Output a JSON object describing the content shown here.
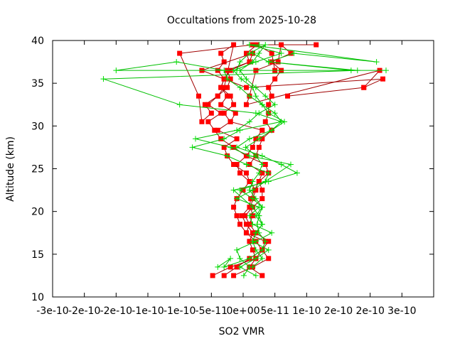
{
  "chart_data": {
    "type": "line",
    "title": "Occultations from 2025-10-28",
    "xlabel": "SO2 VMR",
    "ylabel": "Altitude (km)",
    "xlim": [
      -3e-10,
      3e-10
    ],
    "ylim": [
      10,
      40
    ],
    "grid": false,
    "legend": "none",
    "xticks": [
      {
        "value": -3e-10,
        "label": "-3e-10"
      },
      {
        "value": -2.5e-10,
        "label": "-2e-10"
      },
      {
        "value": -2e-10,
        "label": "-2e-10"
      },
      {
        "value": -1.5e-10,
        "label": "-1e-10"
      },
      {
        "value": -1e-10,
        "label": "-1e-10"
      },
      {
        "value": -5e-11,
        "label": "-5e-11"
      },
      {
        "value": 0,
        "label": "0e+00"
      },
      {
        "value": 5e-11,
        "label": "5e-11"
      },
      {
        "value": 1e-10,
        "label": "1e-10"
      },
      {
        "value": 1.5e-10,
        "label": "2e-10"
      },
      {
        "value": 2e-10,
        "label": "2e-10"
      },
      {
        "value": 2.5e-10,
        "label": "3e-10"
      }
    ],
    "yticks": [
      10,
      15,
      20,
      25,
      30,
      35,
      40
    ],
    "series": [
      {
        "name": "red-squares",
        "color": "#ff0000",
        "line_color": "#a00000",
        "marker": "square",
        "profiles": [
          {
            "x": [
              -4.8e-11,
              -2e-11,
              2e-11,
              3e-11,
              4e-11,
              2e-11,
              1e-11,
              1.5e-11,
              1.2e-11,
              1.5e-11,
              2e-11,
              1e-11,
              -5e-12,
              -1e-11,
              5e-12,
              1.5e-11,
              2e-11,
              3e-11,
              -2e-11,
              -1.2e-11,
              -3.5e-11,
              -2.5e-11,
              -3.5e-11,
              -3e-11,
              -4e-11,
              -3e-11,
              -3.5e-11,
              -1.5e-11,
              -3e-11,
              -4e-11,
              -6e-11,
              -5e-11,
              -6.5e-11,
              -7e-11,
              -1e-10,
              1.5e-11,
              1.15e-10
            ],
            "y": [
              12.5,
              13.5,
              14.5,
              15.5,
              16.5,
              17.5,
              18.5,
              19.5,
              20.5,
              21.5,
              22.5,
              23.5,
              24.5,
              25.5,
              26.5,
              27.5,
              28.5,
              29.5,
              30.5,
              31.5,
              32.5,
              33.5,
              34.5,
              35.5,
              36.5,
              37.5,
              38.5,
              39.5,
              34.5,
              33.5,
              32.5,
              31.5,
              30.5,
              33.5,
              38.5,
              39.5,
              39.5
            ]
          },
          {
            "x": [
              -3e-11,
              -1e-11,
              1e-11,
              3e-11,
              2e-11,
              5e-12,
              -5e-12,
              -1e-11,
              -1.5e-11,
              -1e-11,
              0,
              1e-11,
              5e-12,
              -1.5e-11,
              -2.5e-11,
              -3e-11,
              -1e-11,
              -4e-11,
              -2e-11,
              -3e-11,
              -1.5e-11,
              -2e-11,
              -3.5e-11,
              -3e-11,
              -2e-11,
              1e-11,
              1.5e-11,
              -6.5e-11,
              5e-12,
              2.2e-10,
              1.9e-10
            ],
            "y": [
              12.5,
              13.5,
              14.5,
              15.5,
              16.5,
              17.5,
              18.5,
              19.5,
              20.5,
              21.5,
              22.5,
              23.5,
              24.5,
              25.5,
              26.5,
              27.5,
              28.5,
              29.5,
              30.5,
              31.5,
              32.5,
              33.5,
              34.5,
              35.5,
              36.5,
              37.5,
              38.5,
              36.5,
              34.5,
              35.5,
              34.5
            ]
          },
          {
            "x": [
              -1.5e-11,
              1.5e-11,
              4e-11,
              3e-11,
              3.5e-11,
              5e-12,
              1e-11,
              3e-12,
              1.5e-11,
              3e-11,
              3e-11,
              2.5e-11,
              3e-11,
              1e-11,
              2e-11,
              2.5e-11,
              3e-11,
              4.5e-11,
              3.5e-11,
              4e-11,
              4e-11,
              4.5e-11,
              4e-11,
              5e-11,
              6e-11,
              4.5e-11,
              7.5e-11,
              6e-11,
              5.5e-11,
              2e-11,
              1e-11,
              5e-12,
              2.15e-10,
              1.9e-10,
              7e-11
            ],
            "y": [
              12.5,
              13.5,
              14.5,
              15.5,
              16.5,
              17.5,
              18.5,
              19.5,
              20.5,
              21.5,
              22.5,
              23.5,
              24.5,
              25.5,
              26.5,
              27.5,
              28.5,
              29.5,
              30.5,
              31.5,
              32.5,
              33.5,
              34.5,
              35.5,
              36.5,
              37.5,
              38.5,
              39.5,
              37.5,
              36.5,
              33.5,
              32.5,
              36.5,
              34.5,
              33.5
            ]
          },
          {
            "x": [
              3e-11,
              1e-11,
              2e-11,
              1.5e-11,
              1e-11,
              1.5e-11,
              5e-12,
              -2e-12,
              1e-11,
              1.2e-11,
              1.8e-11,
              2.5e-11,
              4e-11,
              3.5e-11,
              5e-12,
              -1.5e-11,
              -3.5e-11,
              -4.5e-11,
              -5.5e-11,
              -3.5e-11,
              -5.5e-11,
              -4e-11,
              -2.5e-11,
              -2e-11,
              -2.5e-11,
              1e-11,
              5e-12,
              2.2e-11,
              4.5e-11,
              5e-11
            ],
            "y": [
              12.5,
              13.5,
              14.5,
              15.5,
              16.5,
              17.5,
              18.5,
              19.5,
              20.5,
              21.5,
              22.5,
              23.5,
              24.5,
              25.5,
              26.5,
              27.5,
              28.5,
              29.5,
              30.5,
              31.5,
              32.5,
              33.5,
              34.5,
              35.5,
              36.5,
              37.5,
              38.5,
              39.5,
              38.5,
              36.5
            ]
          }
        ]
      },
      {
        "name": "green-plus",
        "color": "#00dd00",
        "line_color": "#00c000",
        "marker": "plus",
        "profiles": [
          {
            "x": [
              2e-11,
              -5e-12,
              2e-11,
              4e-11,
              1.5e-11,
              2e-11,
              3e-11,
              2e-11,
              3e-11,
              1.5e-11,
              -5e-12,
              3.5e-11,
              4e-11,
              5e-12,
              -2.5e-11,
              -8e-11,
              -3e-11,
              -5e-12,
              6e-11,
              2e-11,
              -1e-10,
              -2.2e-10,
              1.8e-10,
              4e-11,
              8e-11,
              2.1e-10,
              1e-11
            ],
            "y": [
              12.5,
              13.5,
              14.5,
              15.5,
              16.5,
              17.5,
              18.5,
              19.5,
              20.5,
              21.5,
              22.5,
              23.5,
              24.5,
              25.5,
              26.5,
              27.5,
              28.5,
              29.5,
              30.5,
              31.5,
              32.5,
              35.5,
              36.5,
              37.5,
              38.5,
              37.5,
              39.5
            ]
          },
          {
            "x": [
              -4e-11,
              -2e-11,
              -3e-11,
              1e-11,
              3e-11,
              3.5e-11,
              2.5e-11,
              2.2e-11,
              2.5e-11,
              1.5e-11,
              -1.5e-11,
              4e-11,
              8.5e-11,
              6e-11,
              3e-11,
              -1e-11,
              1e-11,
              4.5e-11,
              6.5e-11,
              4e-11,
              3e-11,
              1e-11,
              -5e-12,
              -2.5e-11,
              -3e-11,
              -1.05e-10,
              -2e-10,
              2.25e-10,
              1.7e-10,
              4e-11,
              1.5e-11
            ],
            "y": [
              13.5,
              14.5,
              13.5,
              14.5,
              15.5,
              16.5,
              17.5,
              18.5,
              19.5,
              20.5,
              22.5,
              23.5,
              24.5,
              25.5,
              26.5,
              27.5,
              28.5,
              29.5,
              30.5,
              31.5,
              32.5,
              33.5,
              34.5,
              35.5,
              36.5,
              37.5,
              36.5,
              36.5,
              36.5,
              37.5,
              38.5
            ]
          },
          {
            "x": [
              1e-12,
              1e-11,
              -5e-12,
              -1e-11,
              2e-11,
              4.5e-11,
              1.5e-11,
              1e-11,
              2.5e-11,
              -1e-11,
              1.5e-11,
              3.5e-11,
              7.5e-11,
              1e-11,
              -2e-11,
              -7.5e-11,
              -1e-11,
              1e-11,
              2.5e-11,
              5e-11,
              3.5e-11,
              2e-11,
              5e-12,
              -5e-12,
              1.5e-11,
              2.5e-11,
              3.5e-11,
              1e-11,
              -5e-12,
              -1e-11
            ],
            "y": [
              12.5,
              13.5,
              14.5,
              15.5,
              16.5,
              17.5,
              18.5,
              19.5,
              20.5,
              21.5,
              22.5,
              23.5,
              25.5,
              26.5,
              27.5,
              28.5,
              29.5,
              30.5,
              31.5,
              32.5,
              33.5,
              34.5,
              35.5,
              36.5,
              37.5,
              38.5,
              39.5,
              38.5,
              37.5,
              36.5
            ]
          },
          {
            "x": [
              1.5e-11,
              3e-11,
              2e-11,
              1.5e-11,
              2e-11,
              3e-11,
              2.5e-11,
              3e-11,
              2e-11,
              1e-11,
              1.5e-11,
              2.5e-11,
              3e-11,
              2e-11,
              4e-12,
              2.5e-11,
              4.5e-11,
              6e-11,
              5e-11,
              3e-11,
              2e-11,
              1.5e-11,
              -3e-12,
              -1.5e-11,
              2e-11,
              6e-11,
              1e-11,
              2.5e-11
            ],
            "y": [
              13.5,
              14.5,
              15.5,
              16.5,
              17.5,
              18.5,
              19.5,
              20.5,
              21.5,
              22.5,
              23.5,
              24.5,
              25.5,
              26.5,
              27.5,
              28.5,
              29.5,
              30.5,
              31.5,
              32.5,
              33.5,
              34.5,
              35.5,
              36.5,
              37.5,
              38.5,
              39.5,
              39.5
            ]
          }
        ]
      }
    ]
  }
}
